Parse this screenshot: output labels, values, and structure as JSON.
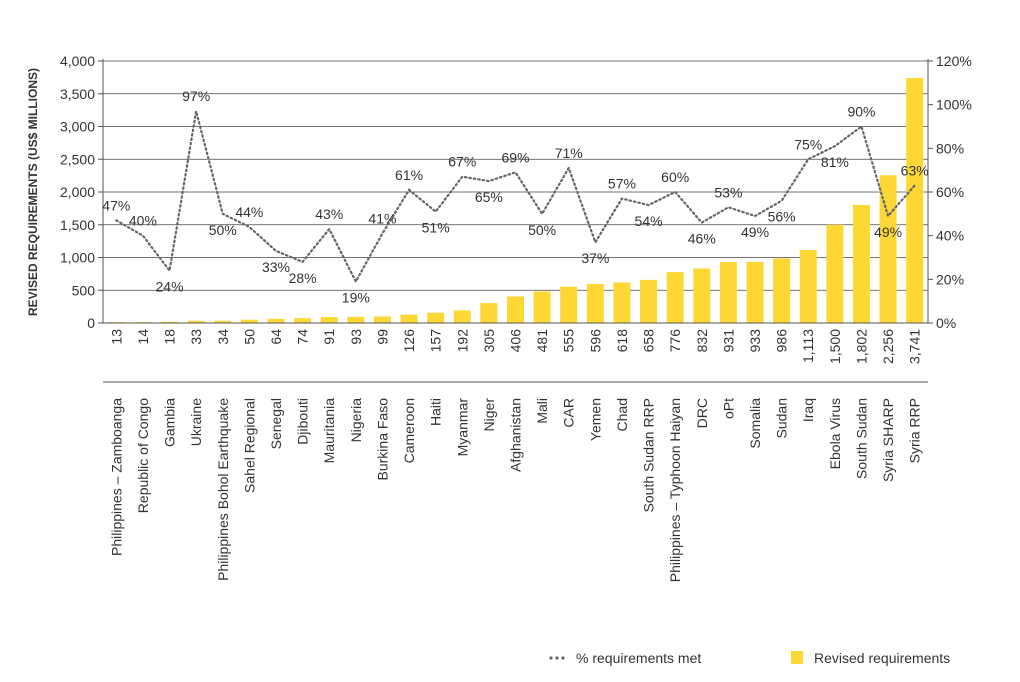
{
  "colors": {
    "bar": "#fdd835",
    "line": "#666666",
    "grid": "#444444",
    "axis": "#555555"
  },
  "chart_data": {
    "type": "bar+line",
    "ylabel": "REVISED REQUIREMENTS (US$ MILLIONS)",
    "ylim": [
      0,
      4000
    ],
    "y_ticks": [
      "0",
      "500",
      "1,000",
      "1,500",
      "2,000",
      "2,500",
      "3,000",
      "3,500",
      "4,000"
    ],
    "y2lim": [
      0,
      120
    ],
    "y2_ticks": [
      "0%",
      "20%",
      "40%",
      "60%",
      "80%",
      "100%",
      "120%"
    ],
    "gridlines": true,
    "legend_position": "bottom-right",
    "categories": [
      "Philippines – Zamboanga",
      "Republic of Congo",
      "Gambia",
      "Ukraine",
      "Philippines Bohol Earthquake",
      "Sahel Regional",
      "Senegal",
      "Djibouti",
      "Mauritania",
      "Nigeria",
      "Burkina Faso",
      "Cameroon",
      "Haiti",
      "Myanmar",
      "Niger",
      "Afghanistan",
      "Mali",
      "CAR",
      "Yemen",
      "Chad",
      "South Sudan RRP",
      "Philippines – Typhoon Haiyan",
      "DRC",
      "oPt",
      "Somalia",
      "Sudan",
      "Iraq",
      "Ebola Virus",
      "South Sudan",
      "Syria SHARP",
      "Syria RRP"
    ],
    "value_labels": [
      "13",
      "14",
      "18",
      "33",
      "34",
      "50",
      "64",
      "74",
      "91",
      "93",
      "99",
      "126",
      "157",
      "192",
      "305",
      "406",
      "481",
      "555",
      "596",
      "618",
      "658",
      "776",
      "832",
      "931",
      "933",
      "986",
      "1,113",
      "1,500",
      "1,802",
      "2,256",
      "3,741"
    ],
    "series": [
      {
        "name": "Revised requirements",
        "type": "bar",
        "axis": "left",
        "values": [
          13,
          14,
          18,
          33,
          34,
          50,
          64,
          74,
          91,
          93,
          99,
          126,
          157,
          192,
          305,
          406,
          481,
          555,
          596,
          618,
          658,
          776,
          832,
          931,
          933,
          986,
          1113,
          1500,
          1802,
          2256,
          3741
        ]
      },
      {
        "name": "% requirements met",
        "type": "line",
        "axis": "right",
        "values": [
          47,
          40,
          24,
          97,
          50,
          44,
          33,
          28,
          43,
          19,
          41,
          61,
          51,
          67,
          65,
          69,
          50,
          71,
          37,
          57,
          54,
          60,
          46,
          53,
          49,
          56,
          75,
          81,
          90,
          49,
          63
        ],
        "labels": [
          "47%",
          "40%",
          "24%",
          "97%",
          "50%",
          "44%",
          "33%",
          "28%",
          "43%",
          "19%",
          "41%",
          "61%",
          "51%",
          "67%",
          "65%",
          "69%",
          "50%",
          "71%",
          "37%",
          "57%",
          "54%",
          "60%",
          "46%",
          "53%",
          "49%",
          "56%",
          "75%",
          "81%",
          "90%",
          "49%",
          "63%"
        ]
      }
    ]
  },
  "legend": {
    "line_label": "% requirements met",
    "bar_label": "Revised requirements"
  }
}
